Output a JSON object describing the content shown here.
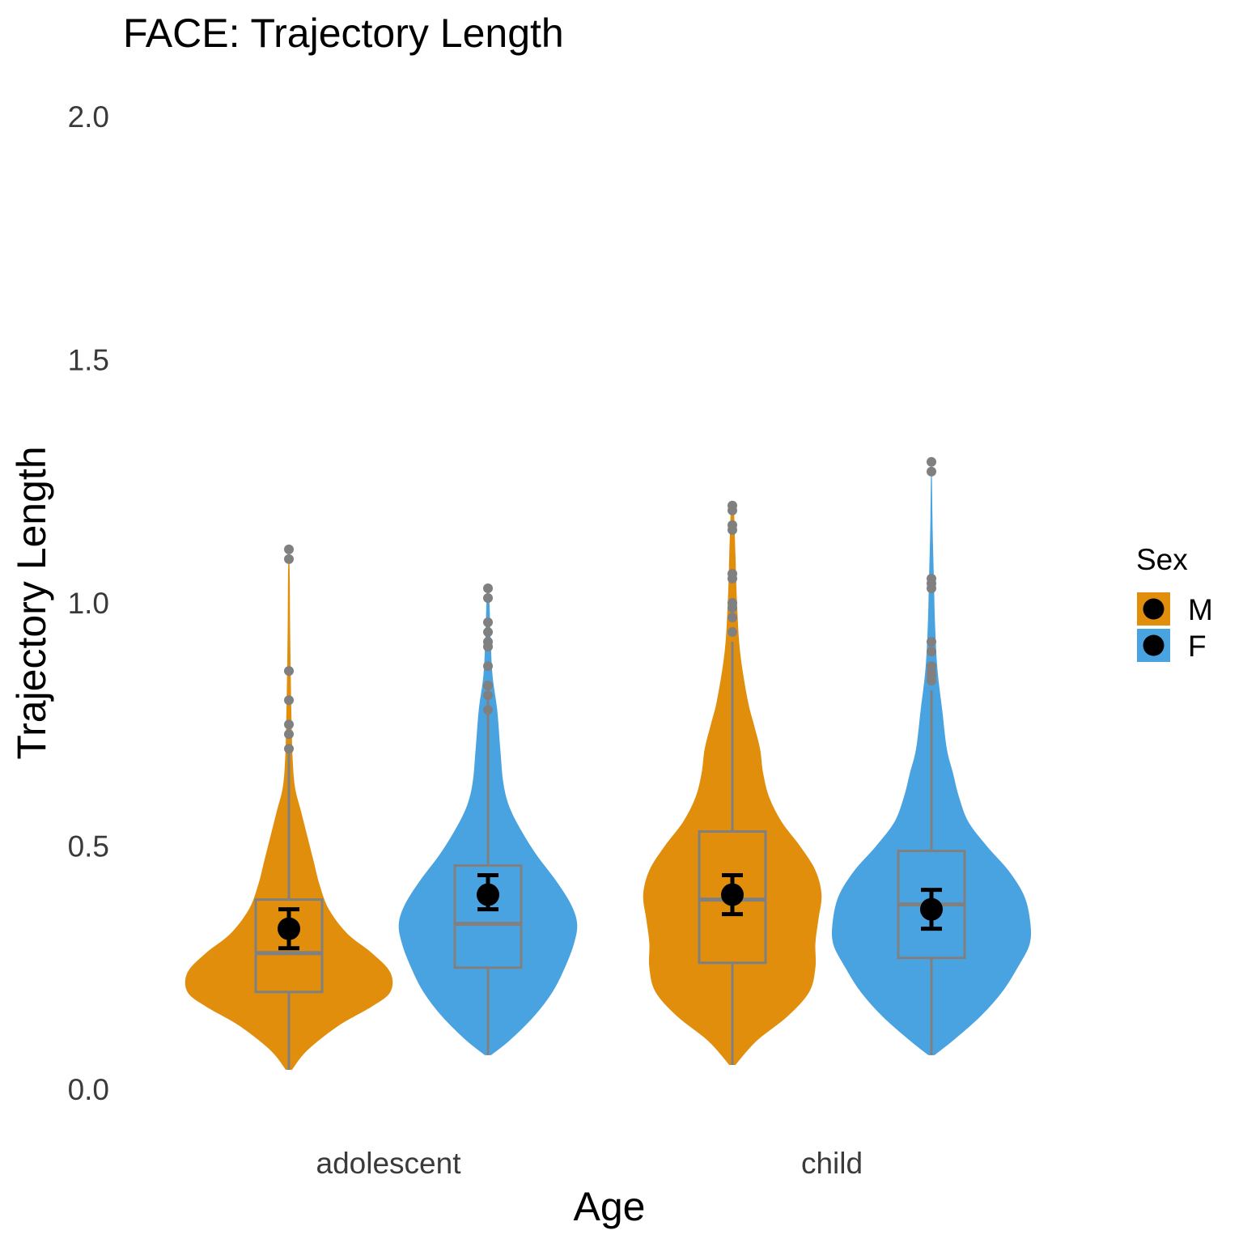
{
  "chart_data": {
    "type": "violin",
    "title": "FACE: Trajectory Length",
    "xlabel": "Age",
    "ylabel": "Trajectory Length",
    "categories": [
      "adolescent",
      "child"
    ],
    "ylim": [
      0,
      2
    ],
    "yticks": [
      "0.0",
      "0.5",
      "1.0",
      "1.5",
      "2.0"
    ],
    "grid": false,
    "legend": {
      "title": "Sex",
      "position": "right",
      "entries": [
        "M",
        "F"
      ]
    },
    "colors": {
      "M": "#E08E0B",
      "F": "#4AA3E1",
      "box": "#808080",
      "point": "#000000"
    },
    "series": [
      {
        "name": "M",
        "groups": [
          {
            "category": "adolescent",
            "mean": 0.33,
            "se_low": 0.29,
            "se_high": 0.37,
            "box": {
              "q1": 0.2,
              "median": 0.28,
              "q3": 0.39,
              "whisker_low": 0.04,
              "whisker_high": 0.69
            },
            "outliers": [
              1.11,
              1.09,
              0.86,
              0.8,
              0.75,
              0.73,
              0.7
            ],
            "violin": {
              "y": [
                0.04,
                0.08,
                0.13,
                0.17,
                0.2,
                0.24,
                0.28,
                0.32,
                0.37,
                0.42,
                0.47,
                0.52,
                0.57,
                0.62,
                0.68,
                0.75,
                0.85,
                0.95,
                1.05,
                1.11
              ],
              "w": [
                0.01,
                0.06,
                0.16,
                0.27,
                0.33,
                0.33,
                0.27,
                0.19,
                0.13,
                0.1,
                0.08,
                0.06,
                0.04,
                0.02,
                0.012,
                0.009,
                0.006,
                0.004,
                0.003,
                0.001
              ]
            }
          },
          {
            "category": "child",
            "mean": 0.4,
            "se_low": 0.36,
            "se_high": 0.44,
            "box": {
              "q1": 0.26,
              "median": 0.39,
              "q3": 0.53,
              "whisker_low": 0.05,
              "whisker_high": 0.92
            },
            "outliers": [
              1.2,
              1.19,
              1.16,
              1.15,
              1.06,
              1.05,
              1.0,
              0.99,
              0.97,
              0.94
            ],
            "violin": {
              "y": [
                0.05,
                0.1,
                0.15,
                0.2,
                0.25,
                0.3,
                0.35,
                0.4,
                0.45,
                0.5,
                0.55,
                0.6,
                0.65,
                0.7,
                0.75,
                0.8,
                0.9,
                1.0,
                1.1,
                1.2
              ],
              "w": [
                0.01,
                0.08,
                0.18,
                0.25,
                0.27,
                0.27,
                0.28,
                0.29,
                0.27,
                0.22,
                0.16,
                0.12,
                0.1,
                0.09,
                0.07,
                0.05,
                0.025,
                0.015,
                0.01,
                0.005
              ]
            }
          }
        ]
      },
      {
        "name": "F",
        "groups": [
          {
            "category": "adolescent",
            "mean": 0.4,
            "se_low": 0.37,
            "se_high": 0.44,
            "box": {
              "q1": 0.25,
              "median": 0.34,
              "q3": 0.46,
              "whisker_low": 0.07,
              "whisker_high": 0.8
            },
            "outliers": [
              1.03,
              1.01,
              0.96,
              0.94,
              0.92,
              0.91,
              0.87,
              0.83,
              0.81,
              0.78
            ],
            "violin": {
              "y": [
                0.07,
                0.1,
                0.15,
                0.2,
                0.25,
                0.3,
                0.34,
                0.38,
                0.43,
                0.48,
                0.53,
                0.58,
                0.63,
                0.7,
                0.78,
                0.85,
                0.92,
                1.0,
                1.03
              ],
              "w": [
                0.01,
                0.07,
                0.15,
                0.21,
                0.25,
                0.28,
                0.29,
                0.27,
                0.22,
                0.16,
                0.11,
                0.07,
                0.05,
                0.04,
                0.03,
                0.015,
                0.009,
                0.005,
                0.002
              ]
            }
          },
          {
            "category": "child",
            "mean": 0.37,
            "se_low": 0.33,
            "se_high": 0.41,
            "box": {
              "q1": 0.27,
              "median": 0.38,
              "q3": 0.49,
              "whisker_low": 0.07,
              "whisker_high": 0.82
            },
            "outliers": [
              1.29,
              1.27,
              1.05,
              1.04,
              1.03,
              0.92,
              0.9,
              0.87,
              0.86,
              0.85,
              0.84
            ],
            "violin": {
              "y": [
                0.07,
                0.1,
                0.15,
                0.2,
                0.25,
                0.3,
                0.35,
                0.4,
                0.45,
                0.5,
                0.55,
                0.6,
                0.65,
                0.7,
                0.78,
                0.86,
                0.95,
                1.05,
                1.15,
                1.29
              ],
              "w": [
                0.01,
                0.07,
                0.16,
                0.23,
                0.28,
                0.32,
                0.32,
                0.3,
                0.25,
                0.18,
                0.12,
                0.09,
                0.07,
                0.05,
                0.035,
                0.02,
                0.012,
                0.008,
                0.004,
                0.001
              ]
            }
          }
        ]
      }
    ]
  }
}
